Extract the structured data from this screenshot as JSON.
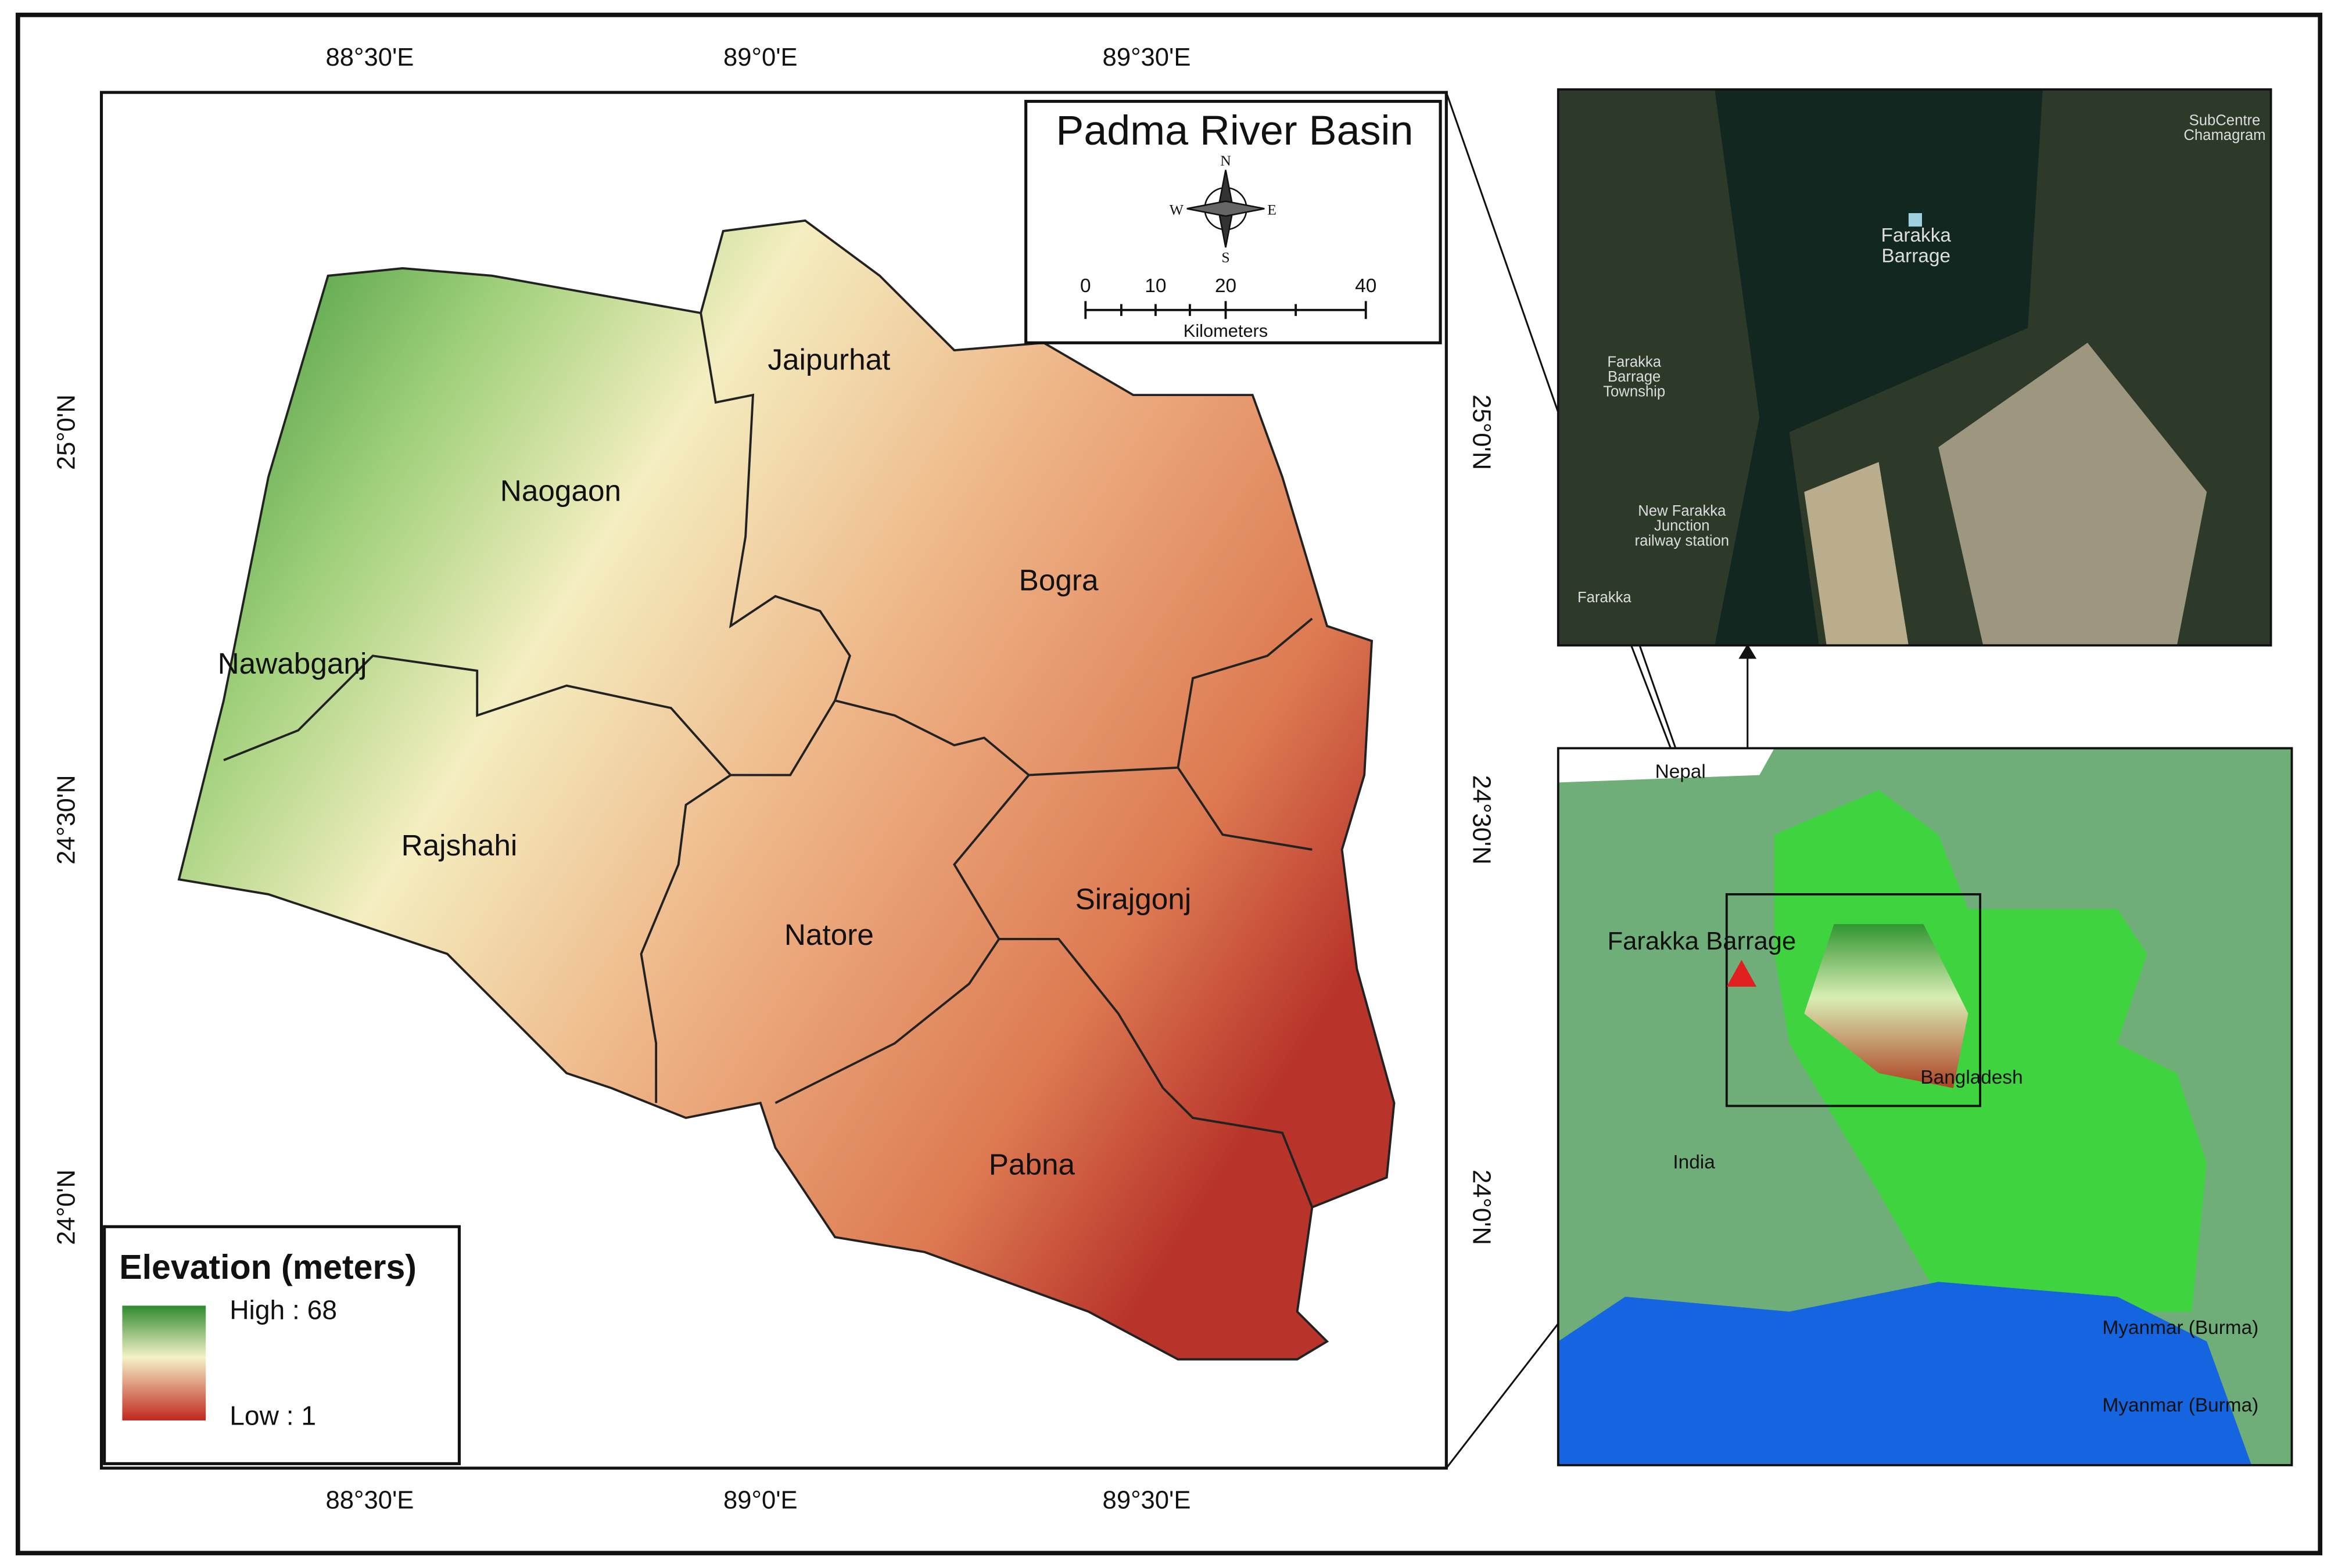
{
  "title": "Padma River Basin",
  "compass": {
    "n": "N",
    "e": "E",
    "s": "S",
    "w": "W"
  },
  "scale_bar": {
    "ticks": [
      "0",
      "10",
      "20",
      "40"
    ],
    "unit": "Kilometers"
  },
  "graticule": {
    "longitudes": [
      "88°30'E",
      "89°0'E",
      "89°30'E"
    ],
    "latitudes": [
      "25°0'N",
      "24°30'N",
      "24°0'N"
    ]
  },
  "districts": [
    "Jaipurhat",
    "Naogaon",
    "Bogra",
    "Nawabganj",
    "Rajshahi",
    "Natore",
    "Sirajgonj",
    "Pabna"
  ],
  "legend": {
    "title": "Elevation (meters)",
    "high": "High : 68",
    "low": "Low : 1"
  },
  "satellite": {
    "labels": [
      [
        "Farakka",
        "Barrage"
      ],
      [
        "Farakka",
        "Barrage",
        "Township"
      ],
      [
        "New Farakka",
        "Junction",
        "railway station"
      ],
      [
        "Farakka"
      ],
      [
        "SubCentre",
        "Chamagram"
      ]
    ]
  },
  "location_map": {
    "labels": [
      "Nepal",
      "Farakka Barrage",
      "Bangladesh",
      "India",
      "Myanmar (Burma)",
      "Myanmar (Burma)"
    ]
  }
}
